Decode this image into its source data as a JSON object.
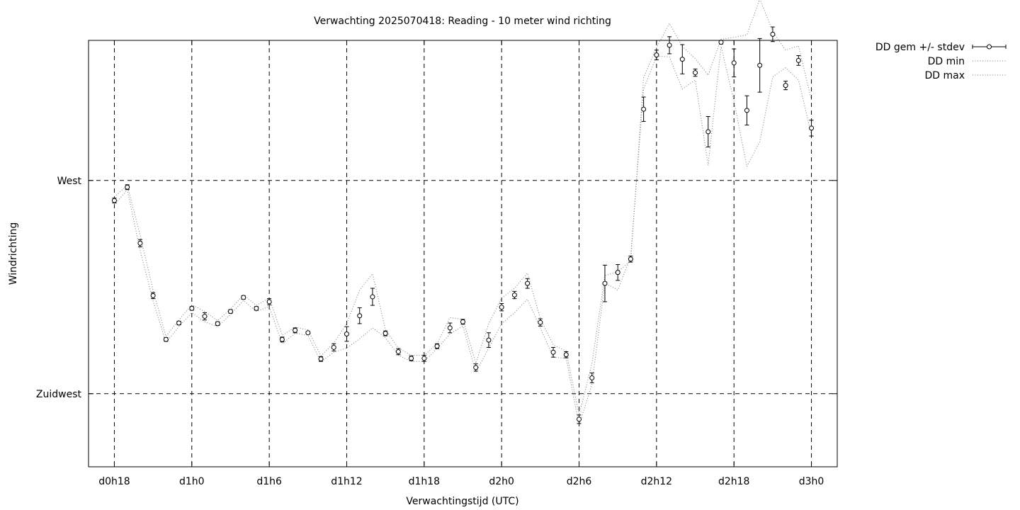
{
  "chart_data": {
    "type": "line",
    "title": "Verwachting 2025070418: Reading - 10 meter wind richting",
    "xlabel": "Verwachtingstijd (UTC)",
    "ylabel": "Windrichting",
    "x_unit": "hours since d0h0",
    "xlim": [
      16,
      74
    ],
    "ylim": [
      213,
      283
    ],
    "x_ticks": [
      {
        "x": 18,
        "label": "d0h18"
      },
      {
        "x": 24,
        "label": "d1h0"
      },
      {
        "x": 30,
        "label": "d1h6"
      },
      {
        "x": 36,
        "label": "d1h12"
      },
      {
        "x": 42,
        "label": "d1h18"
      },
      {
        "x": 48,
        "label": "d2h0"
      },
      {
        "x": 54,
        "label": "d2h6"
      },
      {
        "x": 60,
        "label": "d2h12"
      },
      {
        "x": 66,
        "label": "d2h18"
      },
      {
        "x": 72,
        "label": "d3h0"
      }
    ],
    "y_ticks": [
      {
        "y": 225,
        "label": "Zuidwest"
      },
      {
        "y": 260,
        "label": "West"
      }
    ],
    "grid": true,
    "legend_position": "outside-top-right",
    "x": [
      18,
      19,
      20,
      21,
      22,
      23,
      24,
      25,
      26,
      27,
      28,
      29,
      30,
      31,
      32,
      33,
      34,
      35,
      36,
      37,
      38,
      39,
      40,
      41,
      42,
      43,
      44,
      45,
      46,
      47,
      48,
      49,
      50,
      51,
      52,
      53,
      54,
      55,
      56,
      57,
      58,
      59,
      60,
      61,
      62,
      63,
      64,
      65,
      66,
      67,
      68,
      69,
      70,
      71,
      72
    ],
    "series": [
      {
        "name": "DD gem +/- stdev",
        "style": "points-errorbars",
        "mean": [
          256.7,
          258.9,
          249.7,
          241.1,
          233.9,
          236.6,
          239.0,
          237.7,
          236.5,
          238.5,
          240.8,
          239.0,
          240.1,
          233.9,
          235.4,
          235.0,
          230.7,
          232.6,
          234.8,
          237.8,
          240.9,
          234.9,
          231.9,
          230.8,
          230.8,
          232.8,
          235.8,
          236.8,
          229.3,
          233.8,
          239.2,
          241.2,
          243.1,
          236.7,
          231.8,
          231.4,
          220.8,
          227.6,
          243.1,
          244.9,
          247.1,
          271.7,
          280.6,
          282.2,
          279.9,
          277.7,
          268.0,
          282.7,
          279.3,
          271.5,
          278.9,
          284.0,
          275.6,
          279.7,
          268.6
        ],
        "stdev": [
          0.4,
          0.4,
          0.6,
          0.5,
          0.3,
          0.3,
          0.3,
          0.6,
          0.3,
          0.3,
          0.3,
          0.3,
          0.5,
          0.4,
          0.4,
          0.2,
          0.4,
          0.6,
          1.2,
          1.3,
          1.4,
          0.4,
          0.5,
          0.4,
          0.5,
          0.4,
          0.8,
          0.4,
          0.6,
          1.2,
          0.6,
          0.6,
          0.8,
          0.6,
          0.8,
          0.5,
          0.7,
          0.8,
          3.0,
          1.3,
          0.5,
          2.0,
          0.8,
          1.4,
          2.4,
          0.6,
          2.5,
          0.3,
          2.3,
          2.4,
          4.4,
          1.2,
          0.7,
          0.8,
          1.3
        ]
      },
      {
        "name": "DD min",
        "style": "dotted",
        "values": [
          256.0,
          258.5,
          248.5,
          240.2,
          233.4,
          236.0,
          238.3,
          236.8,
          236.0,
          238.0,
          240.3,
          238.5,
          239.3,
          233.2,
          234.9,
          234.6,
          230.2,
          231.8,
          232.5,
          234.0,
          235.8,
          234.2,
          231.3,
          230.3,
          230.3,
          232.4,
          234.8,
          236.1,
          228.5,
          232.5,
          236.5,
          238.3,
          240.5,
          235.8,
          231.0,
          230.8,
          219.8,
          226.6,
          243.2,
          242.0,
          247.5,
          275.0,
          280.4,
          280.3,
          275.0,
          276.5,
          262.5,
          282.0,
          273.0,
          262.3,
          266.4,
          277.0,
          278.5,
          276.5,
          267.5
        ]
      },
      {
        "name": "DD max",
        "style": "dotted",
        "values": [
          257.3,
          259.2,
          251.0,
          242.0,
          234.4,
          237.1,
          239.6,
          238.5,
          237.0,
          238.9,
          241.2,
          239.5,
          240.7,
          234.6,
          235.9,
          235.5,
          231.2,
          233.3,
          236.5,
          242.0,
          244.7,
          235.5,
          232.5,
          231.3,
          231.3,
          233.2,
          237.5,
          237.2,
          230.0,
          236.5,
          240.7,
          242.3,
          244.8,
          237.3,
          233.0,
          232.0,
          221.5,
          230.0,
          244.4,
          245.0,
          246.8,
          276.9,
          281.8,
          285.8,
          282.0,
          280.0,
          277.3,
          283.2,
          283.5,
          283.9,
          289.8,
          284.5,
          281.4,
          282.1,
          273.2
        ]
      }
    ]
  }
}
